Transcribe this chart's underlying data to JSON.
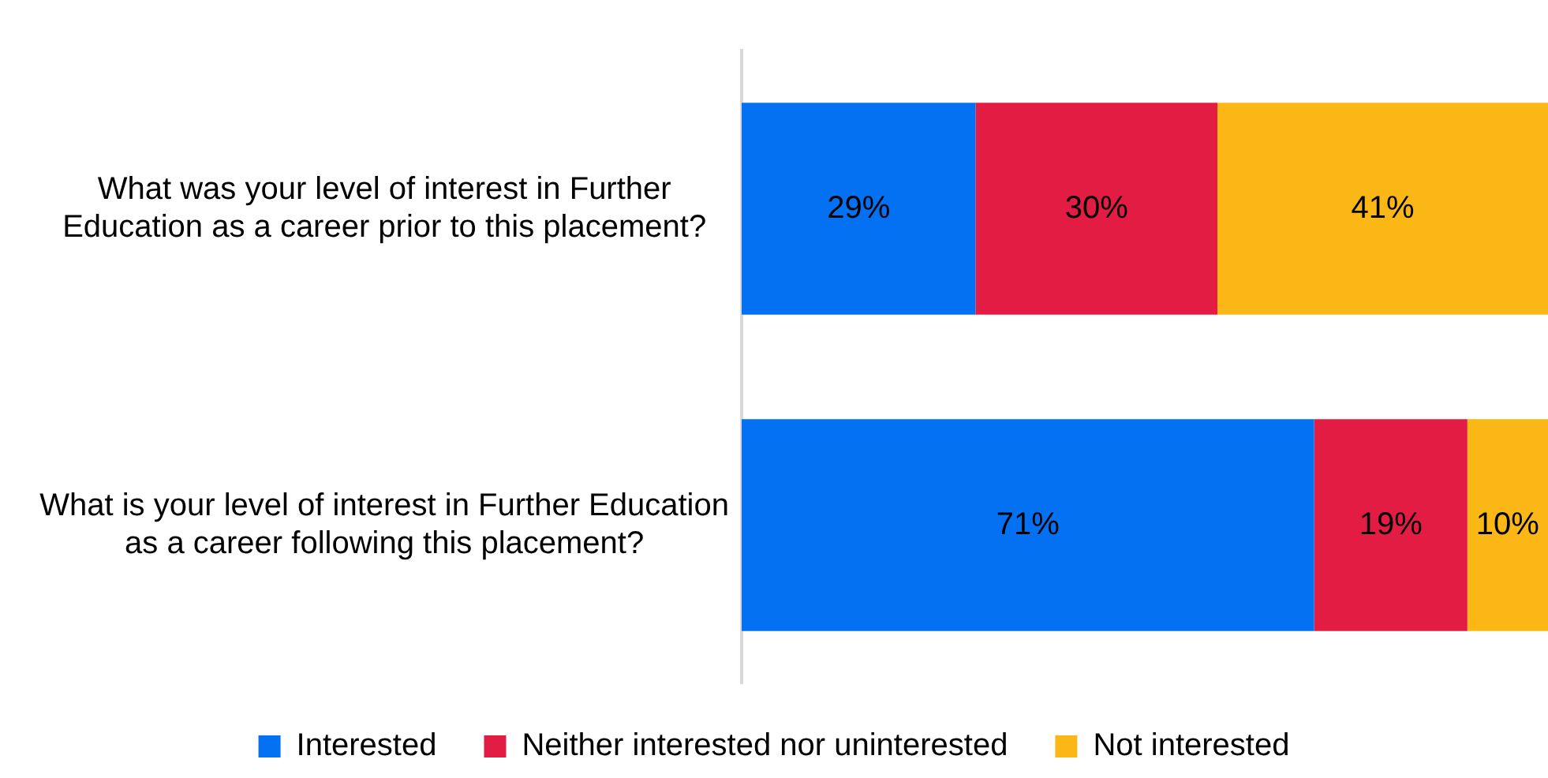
{
  "chart_data": {
    "type": "bar",
    "orientation": "horizontal",
    "stacked": true,
    "categories": [
      "What was your level of interest in Further Education as a career prior to this placement?",
      "What is your level of interest in Further Education as a career following this placement?"
    ],
    "series": [
      {
        "name": "Interested",
        "color": "#0371f2",
        "values": [
          29,
          71
        ],
        "value_labels": [
          "29%",
          "71%"
        ]
      },
      {
        "name": "Neither interested nor uninterested",
        "color": "#e31c43",
        "values": [
          30,
          19
        ],
        "value_labels": [
          "30%",
          "19%"
        ]
      },
      {
        "name": "Not interested",
        "color": "#fbb715",
        "values": [
          41,
          10
        ],
        "value_labels": [
          "41%",
          "10%"
        ]
      }
    ],
    "xlim": [
      0,
      100
    ],
    "tick_labels": "y",
    "grid": false,
    "legend": "bottom"
  }
}
